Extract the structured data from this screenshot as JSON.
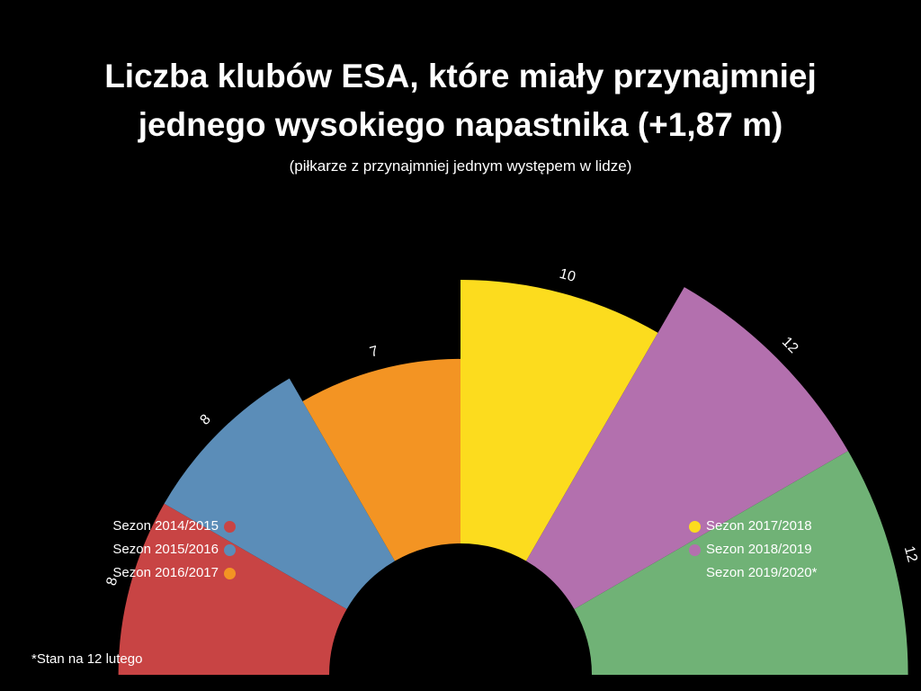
{
  "chart_data": {
    "type": "polar-bar",
    "title_line1": "Liczba klubów ESA, które miały przynajmniej",
    "title_line2": "jednego wysokiego napastnika (+1,87 m)",
    "subtitle": "(piłkarze z przynajmniej jednym występem w lidze)",
    "categories": [
      "Sezon 2014/2015",
      "Sezon 2015/2016",
      "Sezon 2016/2017",
      "Sezon 2017/2018",
      "Sezon 2018/2019",
      "Sezon 2019/2020*"
    ],
    "values": [
      8,
      8,
      7,
      10,
      12,
      12
    ],
    "colors": [
      "#c84444",
      "#5b8db8",
      "#f39423",
      "#fcdc1e",
      "#b370ae",
      "#70b276"
    ],
    "footnote": "*Stan na 12 lutego"
  }
}
